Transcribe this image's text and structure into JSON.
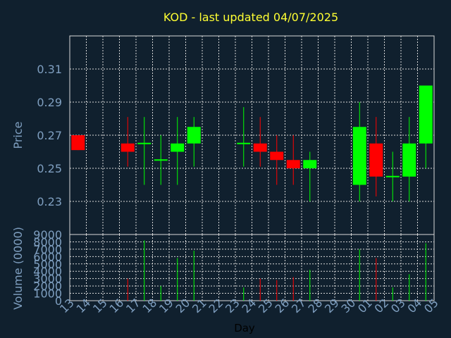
{
  "colors": {
    "background": "#10202e",
    "title": "#ffff33",
    "axis_text": "#7f9fc0",
    "up": "#00ff00",
    "down": "#ff0000",
    "grid": "#d8d8d8"
  },
  "chart_data": {
    "type": "candlestick",
    "title": "KOD - last updated 04/07/2025",
    "xlabel": "Day",
    "price_ylabel": "Price",
    "volume_ylabel": "Volume (0000)",
    "price_ticks": [
      "0.23",
      "0.25",
      "0.27",
      "0.29",
      "0.31"
    ],
    "volume_ticks": [
      "0",
      "1000",
      "2000",
      "3000",
      "4000",
      "5000",
      "6000",
      "7000",
      "8000",
      "9000"
    ],
    "price_ylim": [
      0.21,
      0.33
    ],
    "volume_ylim": [
      0,
      9000
    ],
    "x_tick_labels": [
      "13",
      "14",
      "15",
      "16",
      "17",
      "18",
      "19",
      "20",
      "21",
      "22",
      "23",
      "24",
      "25",
      "26",
      "27",
      "28",
      "29",
      "30",
      "01",
      "02",
      "03",
      "04",
      "05"
    ],
    "candles": [
      {
        "slot": 0,
        "open": 0.27,
        "close": 0.261,
        "high": 0.27,
        "low": 0.261,
        "volume": 0
      },
      {
        "slot": 3,
        "open": 0.265,
        "close": 0.26,
        "high": 0.281,
        "low": 0.251,
        "volume": 3000
      },
      {
        "slot": 4,
        "open": 0.265,
        "close": 0.265,
        "high": 0.281,
        "low": 0.24,
        "volume": 8200
      },
      {
        "slot": 5,
        "open": 0.255,
        "close": 0.255,
        "high": 0.27,
        "low": 0.24,
        "volume": 2000
      },
      {
        "slot": 6,
        "open": 0.26,
        "close": 0.265,
        "high": 0.281,
        "low": 0.24,
        "volume": 5800
      },
      {
        "slot": 7,
        "open": 0.265,
        "close": 0.275,
        "high": 0.281,
        "low": 0.251,
        "volume": 6800
      },
      {
        "slot": 10,
        "open": 0.265,
        "close": 0.265,
        "high": 0.287,
        "low": 0.251,
        "volume": 1800
      },
      {
        "slot": 11,
        "open": 0.265,
        "close": 0.26,
        "high": 0.281,
        "low": 0.251,
        "volume": 3000
      },
      {
        "slot": 12,
        "open": 0.26,
        "close": 0.255,
        "high": 0.27,
        "low": 0.24,
        "volume": 2800
      },
      {
        "slot": 13,
        "open": 0.255,
        "close": 0.25,
        "high": 0.27,
        "low": 0.24,
        "volume": 3200
      },
      {
        "slot": 14,
        "open": 0.25,
        "close": 0.255,
        "high": 0.26,
        "low": 0.23,
        "volume": 4200
      },
      {
        "slot": 17,
        "open": 0.24,
        "close": 0.275,
        "high": 0.29,
        "low": 0.23,
        "volume": 7000
      },
      {
        "slot": 18,
        "open": 0.265,
        "close": 0.245,
        "high": 0.281,
        "low": 0.233,
        "volume": 5800
      },
      {
        "slot": 19,
        "open": 0.245,
        "close": 0.245,
        "high": 0.26,
        "low": 0.23,
        "volume": 1800
      },
      {
        "slot": 20,
        "open": 0.245,
        "close": 0.265,
        "high": 0.281,
        "low": 0.23,
        "volume": 3600
      },
      {
        "slot": 21,
        "open": 0.265,
        "close": 0.3,
        "high": 0.3,
        "low": 0.25,
        "volume": 7800
      }
    ]
  }
}
